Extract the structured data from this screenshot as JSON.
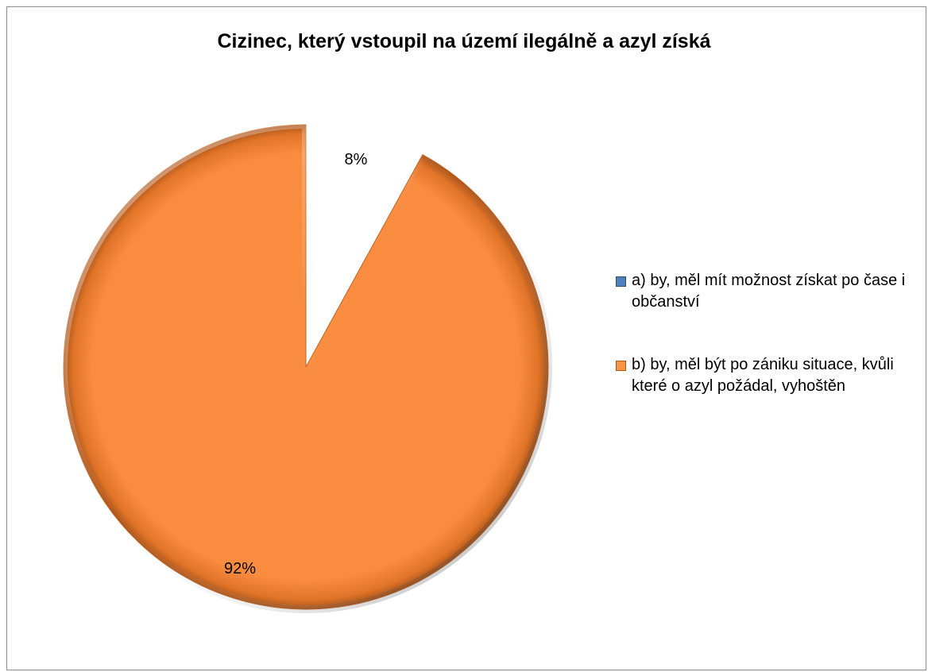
{
  "chart_data": {
    "type": "pie",
    "title": "Cizinec, který vstoupil na území ilegálně a azyl získá",
    "slices": [
      {
        "label": "a) by, měl mít možnost získat po čase i občanství",
        "value": 8,
        "display": "8%",
        "color": "#4f81bd"
      },
      {
        "label": "b) by, měl být po zániku situace, kvůli které o azyl požádal, vyhoštěn",
        "value": 92,
        "display": "92%",
        "color": "#f79646"
      }
    ],
    "legend_position": "right",
    "exploded_slice": "a) by, měl mít možnost získat po čase i občanství",
    "style": "3d-bevel"
  }
}
